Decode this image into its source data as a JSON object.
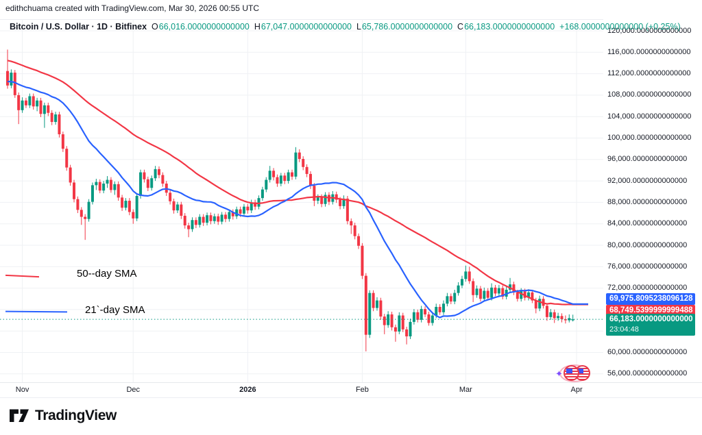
{
  "watermark": "edithchuama created with TradingView.com, Mar 30, 2026 00:55 UTC",
  "header": {
    "title": "Bitcoin / U.S. Dollar · 1D · Bitfinex",
    "ohlc": {
      "o_key": "O",
      "o_val": "66,016.0000000000000",
      "h_key": "H",
      "h_val": "67,047.0000000000000",
      "l_key": "L",
      "l_val": "65,786.0000000000000",
      "c_key": "C",
      "c_val": "66,183.0000000000000"
    },
    "change": "+168.0000000000000 (+0.25%)"
  },
  "price_labels": {
    "sma21": {
      "text": "69,975.8095238096128",
      "value": 69.9758095,
      "bg": "#2962ff"
    },
    "sma50": {
      "text": "68,749.5399999999488",
      "value": 68.74954,
      "bg": "#f23645"
    },
    "last": {
      "text": "66,183.0000000000000",
      "countdown": "23:04:48",
      "value": 66.183,
      "bg": "#089981"
    }
  },
  "annotations": {
    "sma50_label": {
      "text": "50--day SMA",
      "color": "#f23645"
    },
    "sma21_label": {
      "text": "21`-day SMA",
      "color": "#2962ff"
    }
  },
  "footer": {
    "brand": "TradingView",
    "logo_icon": "tradingview-logo-icon"
  },
  "stickers": {
    "coins": "flag-coins-sticker",
    "sparkle": "sparkle-icon"
  },
  "chart_data": {
    "type": "candlestick",
    "title": "Bitcoin / U.S. Dollar, 1D, Bitfinex",
    "unit": "USD, values in thousands",
    "colors": {
      "up": "#089981",
      "down": "#f23645",
      "grid": "#eff1f4",
      "sma21": "#2962ff",
      "sma50": "#f23645"
    },
    "y_axis": {
      "min": 56,
      "max": 120,
      "tick_step": 4,
      "ticks": [
        {
          "v": 120,
          "t": "120,000.0000000000000"
        },
        {
          "v": 116,
          "t": "116,000.0000000000000"
        },
        {
          "v": 112,
          "t": "112,000.0000000000000"
        },
        {
          "v": 108,
          "t": "108,000.0000000000000"
        },
        {
          "v": 104,
          "t": "104,000.0000000000000"
        },
        {
          "v": 100,
          "t": "100,000.0000000000000"
        },
        {
          "v": 96,
          "t": "96,000.0000000000000"
        },
        {
          "v": 92,
          "t": "92,000.0000000000000"
        },
        {
          "v": 88,
          "t": "88,000.0000000000000"
        },
        {
          "v": 84,
          "t": "84,000.0000000000000"
        },
        {
          "v": 80,
          "t": "80,000.0000000000000"
        },
        {
          "v": 76,
          "t": "76,000.0000000000000"
        },
        {
          "v": 72,
          "t": "72,000.0000000000000"
        },
        {
          "v": 68,
          "t": "68,000.0000000000000"
        },
        {
          "v": 64,
          "t": "64,000.0000000000000"
        },
        {
          "v": 60,
          "t": "60,000.0000000000000"
        },
        {
          "v": 56,
          "t": "56,000.0000000000000"
        }
      ]
    },
    "x_axis": {
      "labels": [
        {
          "text": "Nov",
          "i": 4
        },
        {
          "text": "Dec",
          "i": 34
        },
        {
          "text": "2026",
          "i": 65,
          "bold": true
        },
        {
          "text": "Feb",
          "i": 96
        },
        {
          "text": "Mar",
          "i": 124
        },
        {
          "text": "Apr",
          "i": 154
        }
      ]
    },
    "price_line": {
      "value": 66.183,
      "color": "#089981"
    },
    "indicators": [
      {
        "name": "50-day SMA",
        "period": 50,
        "color": "#f23645",
        "last_value_label": "68,749.5399999999488"
      },
      {
        "name": "21-day SMA",
        "period": 21,
        "color": "#2962ff",
        "last_value_label": "69,975.8095238096128"
      }
    ],
    "sma_prehistory": [
      119.5,
      120.2,
      119.0,
      118.4,
      119.8,
      120.5,
      119.2,
      118.0,
      118.8,
      119.5,
      118.2,
      117.5,
      118.5,
      119.0,
      117.8,
      117.0,
      117.9,
      118.6,
      117.2,
      116.5,
      116.0,
      115.2,
      115.8,
      116.4,
      115.0,
      114.2,
      114.8,
      115.5,
      114.0,
      113.2,
      112.5,
      111.8,
      112.4,
      113.0,
      111.5,
      110.8,
      111.4,
      112.0,
      110.5,
      109.8,
      110.4,
      111.0,
      109.5,
      108.8,
      109.4,
      110.0,
      109.0,
      108.5,
      109.2,
      110.2
    ],
    "candles": [
      [
        112.5,
        116.5,
        109.2,
        109.8
      ],
      [
        109.8,
        112.8,
        109.3,
        112.2
      ],
      [
        112.2,
        112.7,
        107.5,
        108.0
      ],
      [
        108.0,
        108.5,
        102.6,
        105.2
      ],
      [
        105.2,
        107.6,
        104.7,
        107.0
      ],
      [
        107.0,
        107.5,
        105.6,
        106.1
      ],
      [
        106.1,
        108.3,
        105.6,
        107.8
      ],
      [
        107.8,
        108.3,
        105.3,
        105.9
      ],
      [
        105.9,
        107.5,
        105.0,
        107.0
      ],
      [
        107.0,
        107.5,
        103.9,
        104.5
      ],
      [
        104.5,
        106.6,
        101.9,
        106.1
      ],
      [
        106.1,
        106.6,
        104.1,
        104.7
      ],
      [
        104.7,
        105.2,
        102.4,
        103.0
      ],
      [
        103.0,
        104.9,
        102.5,
        104.4
      ],
      [
        104.4,
        104.9,
        100.1,
        100.7
      ],
      [
        100.7,
        101.2,
        97.4,
        98.0
      ],
      [
        98.0,
        98.5,
        93.9,
        94.5
      ],
      [
        94.5,
        95.0,
        91.1,
        91.7
      ],
      [
        91.7,
        92.2,
        88.0,
        88.6
      ],
      [
        88.6,
        89.1,
        86.0,
        86.6
      ],
      [
        86.6,
        87.1,
        83.8,
        85.3
      ],
      [
        85.3,
        85.8,
        81.0,
        84.9
      ],
      [
        84.9,
        88.6,
        84.4,
        88.1
      ],
      [
        88.1,
        91.7,
        87.6,
        91.2
      ],
      [
        91.2,
        92.4,
        90.3,
        91.8
      ],
      [
        91.8,
        92.3,
        89.7,
        90.2
      ],
      [
        90.2,
        92.0,
        89.7,
        91.5
      ],
      [
        91.5,
        92.9,
        90.7,
        92.2
      ],
      [
        92.2,
        92.7,
        89.8,
        90.3
      ],
      [
        90.3,
        91.9,
        89.4,
        91.4
      ],
      [
        91.4,
        91.9,
        88.3,
        88.9
      ],
      [
        88.9,
        89.4,
        86.4,
        87.0
      ],
      [
        87.0,
        88.8,
        86.5,
        88.3
      ],
      [
        88.3,
        88.8,
        85.6,
        86.2
      ],
      [
        86.2,
        86.7,
        84.0,
        85.0
      ],
      [
        85.0,
        89.7,
        84.5,
        89.2
      ],
      [
        89.2,
        94.1,
        88.7,
        93.6
      ],
      [
        93.6,
        94.1,
        91.7,
        92.3
      ],
      [
        92.3,
        92.8,
        90.1,
        90.7
      ],
      [
        90.7,
        93.0,
        90.2,
        92.5
      ],
      [
        92.5,
        94.8,
        92.0,
        94.2
      ],
      [
        94.2,
        94.7,
        92.5,
        93.1
      ],
      [
        93.1,
        93.6,
        90.9,
        91.5
      ],
      [
        91.5,
        92.0,
        89.2,
        89.8
      ],
      [
        89.8,
        90.3,
        87.6,
        88.2
      ],
      [
        88.2,
        88.7,
        85.9,
        86.5
      ],
      [
        86.5,
        88.1,
        86.0,
        87.6
      ],
      [
        87.6,
        88.1,
        84.9,
        85.5
      ],
      [
        85.5,
        86.0,
        83.1,
        83.7
      ],
      [
        83.7,
        84.2,
        81.5,
        83.0
      ],
      [
        83.0,
        85.2,
        82.5,
        84.7
      ],
      [
        84.7,
        85.2,
        83.2,
        83.8
      ],
      [
        83.8,
        85.8,
        83.3,
        85.3
      ],
      [
        85.3,
        85.8,
        83.6,
        84.2
      ],
      [
        84.2,
        86.1,
        83.7,
        85.6
      ],
      [
        85.6,
        86.1,
        83.9,
        84.5
      ],
      [
        84.5,
        85.9,
        84.0,
        85.4
      ],
      [
        85.4,
        85.9,
        83.8,
        84.4
      ],
      [
        84.4,
        86.2,
        83.9,
        85.7
      ],
      [
        85.7,
        86.2,
        84.3,
        84.9
      ],
      [
        84.9,
        86.7,
        84.4,
        86.2
      ],
      [
        86.2,
        86.7,
        84.8,
        85.4
      ],
      [
        85.4,
        87.2,
        84.9,
        86.7
      ],
      [
        86.7,
        87.2,
        85.3,
        85.9
      ],
      [
        85.9,
        87.7,
        85.4,
        87.2
      ],
      [
        87.2,
        87.7,
        85.9,
        86.5
      ],
      [
        86.5,
        88.5,
        86.0,
        88.0
      ],
      [
        88.0,
        88.5,
        86.6,
        87.2
      ],
      [
        87.2,
        89.3,
        86.7,
        88.8
      ],
      [
        88.8,
        90.9,
        88.3,
        90.4
      ],
      [
        90.4,
        92.7,
        89.9,
        92.2
      ],
      [
        92.2,
        94.8,
        91.7,
        93.9
      ],
      [
        93.9,
        94.4,
        92.1,
        92.7
      ],
      [
        92.7,
        93.2,
        90.9,
        91.5
      ],
      [
        91.5,
        93.5,
        91.0,
        93.0
      ],
      [
        93.0,
        93.5,
        91.4,
        92.0
      ],
      [
        92.0,
        94.1,
        91.5,
        93.6
      ],
      [
        93.6,
        94.1,
        92.2,
        92.8
      ],
      [
        92.8,
        98.3,
        92.3,
        97.3
      ],
      [
        97.3,
        97.9,
        95.5,
        96.1
      ],
      [
        96.1,
        96.6,
        94.0,
        94.6
      ],
      [
        94.6,
        95.1,
        92.7,
        93.3
      ],
      [
        93.3,
        93.8,
        90.5,
        91.1
      ],
      [
        91.1,
        91.6,
        87.3,
        88.3
      ],
      [
        88.3,
        89.5,
        87.7,
        89.0
      ],
      [
        89.0,
        89.5,
        87.1,
        87.7
      ],
      [
        87.7,
        89.9,
        87.2,
        89.4
      ],
      [
        89.4,
        89.9,
        87.5,
        88.1
      ],
      [
        88.1,
        90.1,
        87.6,
        89.5
      ],
      [
        89.5,
        90.0,
        87.9,
        88.5
      ],
      [
        88.5,
        89.0,
        86.7,
        87.3
      ],
      [
        87.3,
        89.3,
        86.8,
        88.7
      ],
      [
        88.7,
        89.2,
        83.9,
        84.5
      ],
      [
        84.5,
        85.0,
        82.1,
        83.7
      ],
      [
        83.7,
        84.2,
        81.1,
        81.7
      ],
      [
        81.7,
        82.2,
        79.3,
        79.9
      ],
      [
        79.9,
        80.4,
        73.7,
        74.3
      ],
      [
        74.3,
        74.8,
        60.2,
        63.3
      ],
      [
        63.3,
        71.6,
        62.7,
        71.1
      ],
      [
        71.1,
        71.6,
        67.7,
        68.3
      ],
      [
        68.3,
        70.3,
        67.8,
        69.7
      ],
      [
        69.7,
        70.2,
        66.1,
        66.7
      ],
      [
        66.7,
        67.2,
        63.4,
        65.1
      ],
      [
        65.1,
        67.7,
        64.6,
        67.1
      ],
      [
        67.1,
        67.6,
        64.1,
        64.7
      ],
      [
        64.7,
        65.2,
        62.0,
        63.9
      ],
      [
        63.9,
        67.5,
        63.4,
        66.9
      ],
      [
        66.9,
        67.4,
        63.8,
        64.3
      ],
      [
        64.3,
        64.8,
        61.5,
        63.0
      ],
      [
        63.0,
        66.3,
        62.5,
        65.7
      ],
      [
        65.7,
        68.1,
        65.2,
        67.5
      ],
      [
        67.5,
        68.0,
        65.6,
        66.1
      ],
      [
        66.1,
        68.7,
        65.6,
        68.1
      ],
      [
        68.1,
        68.6,
        66.6,
        67.1
      ],
      [
        67.1,
        67.6,
        65.0,
        65.5
      ],
      [
        65.5,
        67.5,
        65.0,
        66.9
      ],
      [
        66.9,
        69.1,
        66.4,
        68.5
      ],
      [
        68.5,
        69.0,
        67.0,
        67.5
      ],
      [
        67.5,
        69.7,
        67.0,
        69.1
      ],
      [
        69.1,
        71.1,
        68.6,
        70.5
      ],
      [
        70.5,
        71.0,
        69.0,
        69.5
      ],
      [
        69.5,
        71.7,
        69.0,
        71.1
      ],
      [
        71.1,
        73.1,
        70.6,
        72.5
      ],
      [
        72.5,
        74.3,
        72.0,
        73.7
      ],
      [
        73.7,
        76.2,
        73.2,
        75.1
      ],
      [
        75.1,
        76.0,
        72.8,
        73.3
      ],
      [
        73.3,
        73.8,
        69.4,
        70.7
      ],
      [
        70.7,
        72.5,
        70.2,
        71.9
      ],
      [
        71.9,
        72.4,
        69.5,
        70.0
      ],
      [
        70.0,
        72.1,
        69.5,
        71.5
      ],
      [
        71.5,
        72.0,
        69.7,
        70.2
      ],
      [
        70.2,
        72.9,
        69.7,
        72.1
      ],
      [
        72.1,
        72.6,
        70.5,
        71.0
      ],
      [
        71.0,
        72.6,
        70.5,
        72.0
      ],
      [
        72.0,
        72.5,
        69.9,
        70.4
      ],
      [
        70.4,
        72.3,
        69.9,
        71.7
      ],
      [
        71.7,
        73.9,
        71.2,
        72.7
      ],
      [
        72.7,
        73.2,
        70.7,
        71.2
      ],
      [
        71.2,
        71.7,
        69.5,
        70.0
      ],
      [
        70.0,
        72.0,
        69.5,
        71.4
      ],
      [
        71.4,
        71.9,
        69.7,
        70.2
      ],
      [
        70.2,
        71.8,
        69.7,
        71.2
      ],
      [
        71.2,
        71.7,
        69.2,
        69.7
      ],
      [
        69.7,
        70.2,
        67.3,
        68.2
      ],
      [
        68.2,
        70.6,
        67.7,
        70.0
      ],
      [
        70.0,
        70.5,
        68.2,
        68.7
      ],
      [
        68.7,
        69.2,
        65.9,
        66.6
      ],
      [
        66.6,
        68.1,
        66.1,
        67.5
      ],
      [
        67.5,
        68.0,
        65.5,
        66.4
      ],
      [
        66.4,
        67.4,
        65.9,
        66.8
      ],
      [
        66.8,
        67.3,
        65.6,
        66.2
      ],
      [
        66.2,
        66.9,
        65.4,
        66.0
      ],
      [
        66.0,
        67.1,
        65.6,
        66.4
      ],
      [
        66.016,
        67.047,
        65.786,
        66.183
      ]
    ]
  }
}
